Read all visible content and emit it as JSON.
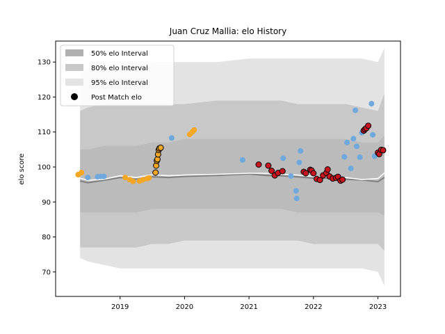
{
  "chart_data": {
    "type": "scatter",
    "title": "Juan Cruz Mallia: elo History",
    "xlabel": "",
    "ylabel": "elo score",
    "xlim": [
      2018.0,
      2023.35
    ],
    "ylim": [
      63,
      136
    ],
    "x_ticks": [
      2019,
      2020,
      2021,
      2022,
      2023
    ],
    "y_ticks": [
      70,
      80,
      90,
      100,
      110,
      120,
      130
    ],
    "grid": false,
    "legend_position": "top-left",
    "legend": [
      {
        "label": "50% elo Interval",
        "kind": "band50"
      },
      {
        "label": "80% elo Interval",
        "kind": "band80"
      },
      {
        "label": "95% elo Interval",
        "kind": "band95"
      },
      {
        "label": "Post Match elo",
        "kind": "marker"
      }
    ],
    "colors": {
      "band50": "#b0b0b0",
      "band80": "#c8c8c8",
      "band95": "#e3e3e3",
      "median_line": "#808080",
      "mean_line": "#ffffff",
      "orange": "#f5a623",
      "blue": "#6fa8dc",
      "red": "#c8141e",
      "legend_marker": "#000000"
    },
    "bands": {
      "x": [
        2018.38,
        2018.5,
        2018.75,
        2019.0,
        2019.25,
        2019.5,
        2019.75,
        2020.0,
        2020.5,
        2021.0,
        2021.25,
        2021.5,
        2021.75,
        2022.0,
        2022.25,
        2022.5,
        2022.75,
        2023.0,
        2023.1
      ],
      "p95_lo": [
        74,
        73,
        72,
        71,
        71,
        71,
        71,
        71,
        71,
        71,
        71,
        71,
        71,
        71,
        71,
        71,
        71,
        70,
        66
      ],
      "p95_hi": [
        127,
        128,
        129,
        129,
        129,
        130,
        130,
        130,
        130,
        131,
        131,
        131,
        131,
        131,
        131,
        131,
        131,
        130,
        134
      ],
      "p80_lo": [
        77,
        77,
        77,
        77,
        77,
        78,
        78,
        79,
        79,
        79,
        79,
        79,
        79,
        78,
        78,
        78,
        78,
        78,
        76
      ],
      "p80_hi": [
        116,
        117,
        118,
        118,
        118,
        118,
        118,
        118,
        119,
        119,
        119,
        119,
        118,
        118,
        118,
        118,
        117,
        116,
        121
      ],
      "p50_lo": [
        87,
        87,
        87,
        87,
        87,
        88,
        88,
        88,
        88,
        88,
        88,
        88,
        87,
        87,
        87,
        87,
        87,
        87,
        86
      ],
      "p50_hi": [
        105,
        105,
        106,
        106,
        106,
        107,
        107,
        108,
        108,
        108,
        108,
        108,
        108,
        108,
        108,
        108,
        107,
        107,
        109
      ],
      "median": [
        96,
        95.5,
        96.2,
        97,
        96.5,
        97.2,
        97,
        97.3,
        97.6,
        98,
        97.6,
        97.5,
        97.2,
        96.8,
        96.8,
        96.5,
        96.3,
        95.8,
        97
      ],
      "mean": [
        96.8,
        96.2,
        96.5,
        97.5,
        97,
        97.8,
        97.5,
        97.7,
        97.9,
        98.2,
        98.2,
        97.9,
        97.7,
        97.3,
        97.1,
        97,
        96.4,
        96.7,
        98.3
      ]
    },
    "series": [
      {
        "color_key": "orange",
        "x": [
          2018.35,
          2018.4,
          2019.08,
          2019.15,
          2019.2,
          2019.3,
          2019.35,
          2019.42,
          2019.45,
          2020.08,
          2020.12,
          2020.15
        ],
        "y": [
          97.8,
          98.4,
          97,
          96.4,
          95.9,
          96,
          96.3,
          96.7,
          96.9,
          109.3,
          110,
          110.6
        ]
      },
      {
        "color_key": "orange_outlined",
        "x": [
          2019.55,
          2019.56,
          2019.57,
          2019.58,
          2019.59,
          2019.6,
          2019.61,
          2019.63
        ],
        "y": [
          98.4,
          100.4,
          101.8,
          102.2,
          103.6,
          104.9,
          105.3,
          105.5
        ]
      },
      {
        "color_key": "blue",
        "x": [
          2018.5,
          2018.65,
          2018.7,
          2018.75,
          2019.8,
          2020.9,
          2021.53,
          2021.65,
          2021.73,
          2021.74,
          2021.78,
          2021.8,
          2022.48,
          2022.52,
          2022.58,
          2022.62,
          2022.65,
          2022.67,
          2022.72,
          2022.75,
          2022.9,
          2022.92,
          2022.95
        ],
        "y": [
          97,
          97.2,
          97.3,
          97.3,
          108.3,
          102,
          102.5,
          97.4,
          93.2,
          91,
          101.3,
          104.6,
          102.9,
          107,
          99.6,
          108.1,
          116.2,
          105.9,
          102.8,
          109.8,
          118.1,
          109.2,
          103.1
        ]
      },
      {
        "color_key": "red",
        "x": [
          2021.15,
          2021.3,
          2021.35,
          2021.4,
          2021.45,
          2021.52,
          2021.85,
          2021.88,
          2021.95,
          2021.97,
          2022.0,
          2022.05,
          2022.1,
          2022.15,
          2022.2,
          2022.22,
          2022.25,
          2022.3,
          2022.35,
          2022.38,
          2022.42,
          2022.45,
          2022.78,
          2022.8,
          2022.82,
          2022.85,
          2023.0,
          2023.02,
          2023.05,
          2023.08
        ],
        "y": [
          100.7,
          100.4,
          98.9,
          97.6,
          98.3,
          98.8,
          98.6,
          98.2,
          99.2,
          99,
          98.2,
          96.6,
          96.3,
          97.6,
          98.3,
          99.3,
          97.3,
          96.7,
          96.9,
          97.2,
          96.1,
          96.4,
          110.4,
          110.8,
          111.1,
          111.8,
          104.1,
          103.7,
          104.9,
          104.8
        ]
      }
    ]
  }
}
